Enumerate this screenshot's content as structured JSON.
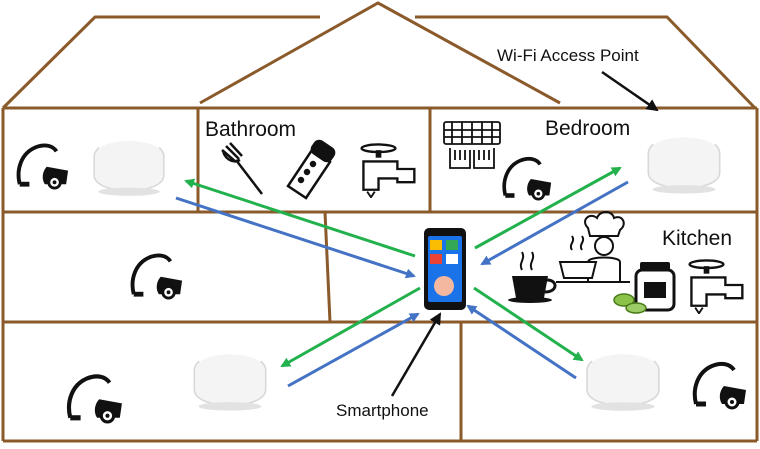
{
  "labels": {
    "access_point": "Wi-Fi Access Point",
    "bathroom": "Bathroom",
    "bedroom": "Bedroom",
    "kitchen": "Kitchen",
    "smartphone": "Smartphone"
  },
  "colors": {
    "wall": "#8b5a2b",
    "uplink": "#22b14c",
    "downlink": "#4472c4",
    "icon": "#111111",
    "router_body": "#f2f2f2",
    "phone_screen": "#1a73e8"
  },
  "icons": [
    "vacuum-cleaner-icon",
    "wifi-router-icon",
    "fork-icon",
    "electric-shaver-icon",
    "water-tap-icon",
    "keyboard-icon",
    "coffee-cup-icon",
    "chef-icon",
    "jar-icon",
    "smartphone-icon"
  ]
}
